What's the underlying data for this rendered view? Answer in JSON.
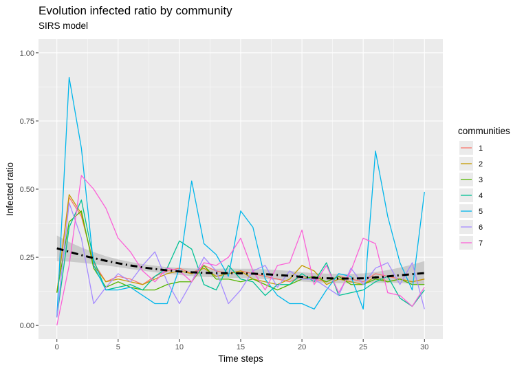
{
  "chart_data": {
    "type": "line",
    "title": "Evolution infected ratio by community",
    "subtitle": "SIRS model",
    "xlabel": "Time steps",
    "ylabel": "Infected ratio",
    "xlim": [
      -1.5,
      31.5
    ],
    "ylim": [
      -0.05,
      1.05
    ],
    "x_ticks": [
      0,
      5,
      10,
      15,
      20,
      25,
      30
    ],
    "y_ticks": [
      0.0,
      0.25,
      0.5,
      0.75,
      1.0
    ],
    "y_tick_labels": [
      "0.00",
      "0.25",
      "0.50",
      "0.75",
      "1.00"
    ],
    "grid": true,
    "legend_title": "communities",
    "legend_position": "right",
    "x": [
      0,
      1,
      2,
      3,
      4,
      5,
      6,
      7,
      8,
      9,
      10,
      11,
      12,
      13,
      14,
      15,
      16,
      17,
      18,
      19,
      20,
      21,
      22,
      23,
      24,
      25,
      26,
      27,
      28,
      29,
      30
    ],
    "series": [
      {
        "name": "1",
        "color": "#F8766D",
        "values": [
          0.12,
          0.47,
          0.4,
          0.23,
          0.16,
          0.18,
          0.17,
          0.15,
          0.18,
          0.2,
          0.21,
          0.19,
          0.22,
          0.2,
          0.19,
          0.2,
          0.19,
          0.18,
          0.17,
          0.16,
          0.18,
          0.17,
          0.16,
          0.18,
          0.17,
          0.16,
          0.19,
          0.18,
          0.17,
          0.16,
          0.17
        ]
      },
      {
        "name": "2",
        "color": "#C49A00",
        "values": [
          0.12,
          0.48,
          0.41,
          0.22,
          0.16,
          0.17,
          0.16,
          0.15,
          0.17,
          0.19,
          0.2,
          0.19,
          0.21,
          0.18,
          0.19,
          0.2,
          0.17,
          0.16,
          0.15,
          0.17,
          0.22,
          0.2,
          0.15,
          0.17,
          0.16,
          0.15,
          0.18,
          0.16,
          0.17,
          0.16,
          0.17
        ]
      },
      {
        "name": "3",
        "color": "#53B400",
        "values": [
          0.12,
          0.38,
          0.42,
          0.21,
          0.14,
          0.16,
          0.14,
          0.13,
          0.13,
          0.15,
          0.16,
          0.16,
          0.22,
          0.17,
          0.17,
          0.16,
          0.17,
          0.15,
          0.13,
          0.15,
          0.17,
          0.18,
          0.16,
          0.18,
          0.15,
          0.15,
          0.17,
          0.16,
          0.17,
          0.15,
          0.15
        ]
      },
      {
        "name": "4",
        "color": "#00C094",
        "values": [
          0.03,
          0.36,
          0.46,
          0.24,
          0.13,
          0.14,
          0.15,
          0.13,
          0.18,
          0.21,
          0.31,
          0.28,
          0.15,
          0.13,
          0.22,
          0.17,
          0.16,
          0.11,
          0.15,
          0.15,
          0.19,
          0.16,
          0.23,
          0.11,
          0.12,
          0.13,
          0.16,
          0.18,
          0.1,
          0.07,
          0.13
        ]
      },
      {
        "name": "5",
        "color": "#00B6EB",
        "values": [
          0.03,
          0.91,
          0.65,
          0.22,
          0.13,
          0.13,
          0.14,
          0.11,
          0.08,
          0.08,
          0.21,
          0.53,
          0.3,
          0.26,
          0.18,
          0.42,
          0.36,
          0.17,
          0.11,
          0.08,
          0.08,
          0.06,
          0.13,
          0.19,
          0.18,
          0.06,
          0.64,
          0.4,
          0.23,
          0.13,
          0.49
        ]
      },
      {
        "name": "6",
        "color": "#A58AFF",
        "values": [
          0.03,
          0.45,
          0.32,
          0.08,
          0.14,
          0.19,
          0.16,
          0.22,
          0.27,
          0.16,
          0.08,
          0.16,
          0.25,
          0.2,
          0.08,
          0.13,
          0.2,
          0.22,
          0.14,
          0.2,
          0.17,
          0.17,
          0.14,
          0.11,
          0.21,
          0.15,
          0.21,
          0.23,
          0.15,
          0.23,
          0.06
        ]
      },
      {
        "name": "7",
        "color": "#FB61D7",
        "values": [
          0.0,
          0.22,
          0.55,
          0.5,
          0.43,
          0.32,
          0.27,
          0.2,
          0.16,
          0.21,
          0.2,
          0.16,
          0.23,
          0.22,
          0.25,
          0.32,
          0.2,
          0.13,
          0.22,
          0.23,
          0.35,
          0.15,
          0.22,
          0.12,
          0.2,
          0.32,
          0.3,
          0.12,
          0.11,
          0.07,
          0.14
        ]
      }
    ],
    "trend": {
      "color": "#000000",
      "style": "dot-dash",
      "band_color": "#999999",
      "values": [
        0.283,
        0.27,
        0.258,
        0.247,
        0.237,
        0.228,
        0.22,
        0.213,
        0.207,
        0.202,
        0.198,
        0.195,
        0.193,
        0.192,
        0.192,
        0.191,
        0.19,
        0.188,
        0.185,
        0.182,
        0.178,
        0.175,
        0.173,
        0.172,
        0.172,
        0.173,
        0.176,
        0.18,
        0.184,
        0.188,
        0.192
      ],
      "lower": [
        0.236,
        0.234,
        0.23,
        0.225,
        0.22,
        0.214,
        0.207,
        0.201,
        0.195,
        0.19,
        0.185,
        0.181,
        0.178,
        0.176,
        0.175,
        0.174,
        0.172,
        0.17,
        0.167,
        0.164,
        0.161,
        0.158,
        0.156,
        0.155,
        0.155,
        0.155,
        0.156,
        0.157,
        0.156,
        0.153,
        0.148
      ],
      "upper": [
        0.33,
        0.306,
        0.286,
        0.269,
        0.254,
        0.242,
        0.233,
        0.225,
        0.219,
        0.214,
        0.211,
        0.209,
        0.208,
        0.208,
        0.209,
        0.208,
        0.208,
        0.206,
        0.203,
        0.2,
        0.195,
        0.192,
        0.19,
        0.189,
        0.189,
        0.191,
        0.196,
        0.203,
        0.212,
        0.223,
        0.236
      ]
    }
  }
}
